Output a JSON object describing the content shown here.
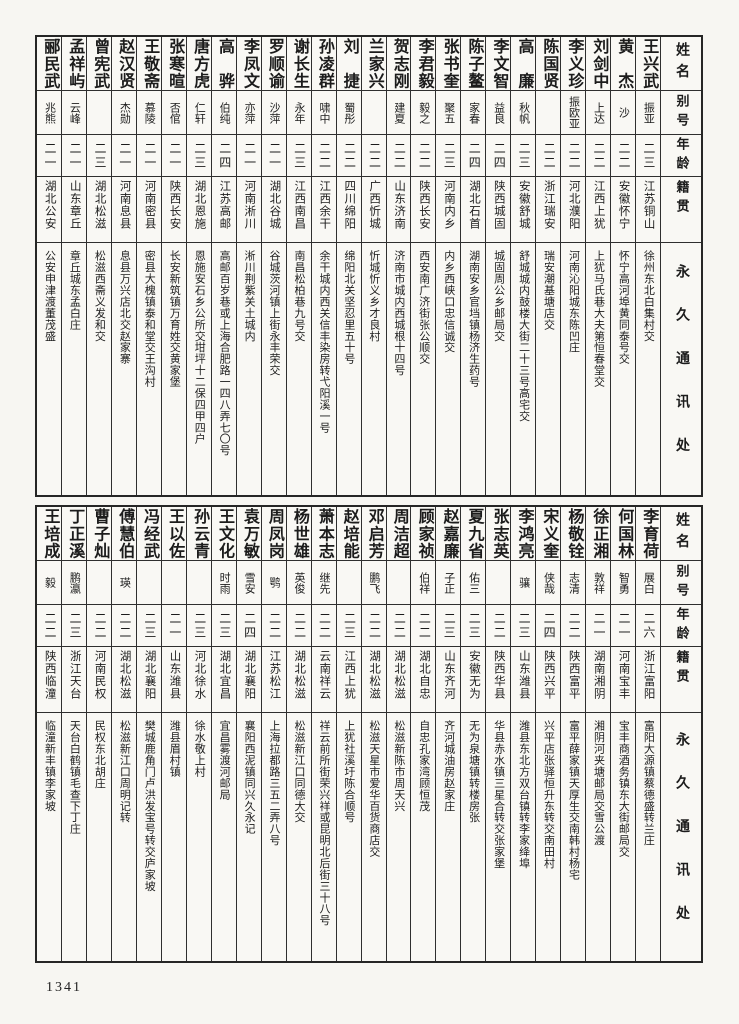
{
  "page": {
    "number": "1341"
  },
  "headers": {
    "name": "姓名",
    "alias": "别号",
    "age": "年龄",
    "native": "籍贯",
    "address": "永久通讯处"
  },
  "tables": [
    {
      "entries": [
        {
          "name": "王兴武",
          "alias": "振亚",
          "age": "二三",
          "native": "江苏铜山",
          "address": "徐州东北白集村交"
        },
        {
          "name": "黄　杰",
          "alias": "沙",
          "age": "二二",
          "native": "安徽怀宁",
          "address": "怀宁高河埠黄同泰号交"
        },
        {
          "name": "刘剑中",
          "alias": "上达",
          "age": "二二",
          "native": "江西上犹",
          "address": "上犹马氏巷大夫第恒春堂交"
        },
        {
          "name": "李义珍",
          "alias": "振欧亚",
          "age": "二二",
          "native": "河北濮阳",
          "address": "河南沁阳城东陈凹庄"
        },
        {
          "name": "陈国贤",
          "alias": "",
          "age": "二二",
          "native": "浙江瑞安",
          "address": "瑞安潮基塘店交"
        },
        {
          "name": "高　廉",
          "alias": "秋帆",
          "age": "二三",
          "native": "安徽舒城",
          "address": "舒城城内鼓楼大街二十三号高宅交"
        },
        {
          "name": "李文智",
          "alias": "益良",
          "age": "二四",
          "native": "陕西城固",
          "address": "城固周公乡邮局交"
        },
        {
          "name": "陈子鳌",
          "alias": "家春",
          "age": "二四",
          "native": "湖北石首",
          "address": "湖南安乡官垱镇杨济生药号"
        },
        {
          "name": "张书奎",
          "alias": "聚五",
          "age": "二三",
          "native": "河南内乡",
          "address": "内乡西峡口忠信诚交"
        },
        {
          "name": "李君毅",
          "alias": "毅之",
          "age": "二二",
          "native": "陕西长安",
          "address": "西安南广济街张公顺交"
        },
        {
          "name": "贺志刚",
          "alias": "建夏",
          "age": "二二",
          "native": "山东济南",
          "address": "济南市城内西城根十四号"
        },
        {
          "name": "兰家兴",
          "alias": "",
          "age": "二二",
          "native": "广西忻城",
          "address": "忻城忻义乡才良村"
        },
        {
          "name": "刘　捷",
          "alias": "蜀彤",
          "age": "二二",
          "native": "四川绵阳",
          "address": "绵阳北关坚忍里五十号"
        },
        {
          "name": "孙凌群",
          "alias": "啸中",
          "age": "二二",
          "native": "江西余干",
          "address": "余干城内西关信丰染房转弋阳溪一号"
        },
        {
          "name": "谢长生",
          "alias": "永年",
          "age": "二三",
          "native": "江西南昌",
          "address": "南昌松柏巷九号交"
        },
        {
          "name": "罗顺谕",
          "alias": "沙萍",
          "age": "二一",
          "native": "湖北谷城",
          "address": "谷城茨河镇上街永丰荣交"
        },
        {
          "name": "李凤文",
          "alias": "亦萍",
          "age": "二一",
          "native": "河南淅川",
          "address": "淅川荆紫关土城内"
        },
        {
          "name": "高　骅",
          "alias": "伯纯",
          "age": "二四",
          "native": "江苏高邮",
          "address": "高邮百岁巷或上海合肥路一四八弄七〇号"
        },
        {
          "name": "唐方虎",
          "alias": "仁轩",
          "age": "二三",
          "native": "湖北恩施",
          "address": "恩施安石乡公所交坩坪十二保四甲四户"
        },
        {
          "name": "张寒暄",
          "alias": "否倌",
          "age": "二一",
          "native": "陕西长安",
          "address": "长安新筑镇万育姓交黄家堡"
        },
        {
          "name": "王敬斋",
          "alias": "慕陵",
          "age": "二一",
          "native": "河南密县",
          "address": "密县大槐镇泰和堂交王沟村"
        },
        {
          "name": "赵汉贤",
          "alias": "杰勋",
          "age": "二一",
          "native": "河南息县",
          "address": "息县万兴店北交赵家寨"
        },
        {
          "name": "曾宪武",
          "alias": "",
          "age": "二三",
          "native": "湖北松滋",
          "address": "松滋西斋义发和交"
        },
        {
          "name": "孟祥屿",
          "alias": "云峰",
          "age": "二一",
          "native": "山东章丘",
          "address": "章丘城东孟白庄"
        },
        {
          "name": "郦民武",
          "alias": "兆熊",
          "age": "二一",
          "native": "湖北公安",
          "address": "公安申津渡董茂盛"
        }
      ]
    },
    {
      "entries": [
        {
          "name": "李育荷",
          "alias": "展白",
          "age": "二六",
          "native": "浙江富阳",
          "address": "富阳大源镇蔡德盛转兰庄"
        },
        {
          "name": "何国林",
          "alias": "智勇",
          "age": "二一",
          "native": "河南宝丰",
          "address": "宝丰商酒务镇东大街邮局交"
        },
        {
          "name": "徐正湘",
          "alias": "敦祥",
          "age": "二一",
          "native": "湖南湘阴",
          "address": "湘阴河夹塘邮局交雪公渡"
        },
        {
          "name": "杨敬铨",
          "alias": "志清",
          "age": "二二",
          "native": "陕西富平",
          "address": "富平薛家镇天厚生交南韩村杨宅"
        },
        {
          "name": "宋义奎",
          "alias": "侠哉",
          "age": "二四",
          "native": "陕西兴平",
          "address": "兴平店张驿恒升东转交南田村"
        },
        {
          "name": "李鸿亮",
          "alias": "骧",
          "age": "二三",
          "native": "山东潍县",
          "address": "潍县东北方双台镇转李家绛埠"
        },
        {
          "name": "张志英",
          "alias": "",
          "age": "二二",
          "native": "陕西华县",
          "address": "华县赤水镇三星合转交张家堡"
        },
        {
          "name": "夏九省",
          "alias": "佑三",
          "age": "二三",
          "native": "安徽无为",
          "address": "无为泉塘镇转楼房张"
        },
        {
          "name": "赵嘉廉",
          "alias": "子正",
          "age": "二三",
          "native": "山东齐河",
          "address": "齐河城油房赵家庄"
        },
        {
          "name": "顾家祯",
          "alias": "伯祥",
          "age": "二二",
          "native": "湖北自忠",
          "address": "自忠孔家湾顾恒茂"
        },
        {
          "name": "周洁超",
          "alias": "",
          "age": "二二",
          "native": "湖北松滋",
          "address": "松滋新陈市周天兴"
        },
        {
          "name": "邓启芳",
          "alias": "鹏飞",
          "age": "二二",
          "native": "湖北松滋",
          "address": "松滋天星市爱华百货商店交"
        },
        {
          "name": "赵培能",
          "alias": "",
          "age": "二三",
          "native": "江西上犹",
          "address": "上犹社溪圩陈合顺号"
        },
        {
          "name": "萧本志",
          "alias": "继先",
          "age": "二二",
          "native": "云南祥云",
          "address": "祥云前所街荣兴祥或昆明北后街三十八号"
        },
        {
          "name": "杨世雄",
          "alias": "英俊",
          "age": "二二",
          "native": "湖北松滋",
          "address": "松滋新江口同德大交"
        },
        {
          "name": "周凤岗",
          "alias": "鹗",
          "age": "二二",
          "native": "江苏松江",
          "address": "上海拉都路三五二弄八号"
        },
        {
          "name": "袁万敏",
          "alias": "雪安",
          "age": "二四",
          "native": "湖北襄阳",
          "address": "襄阳西泥镇同兴久永记"
        },
        {
          "name": "王文化",
          "alias": "时雨",
          "age": "二三",
          "native": "湖北宜昌",
          "address": "宜昌雾渡河邮局"
        },
        {
          "name": "孙云青",
          "alias": "",
          "age": "二三",
          "native": "河北徐水",
          "address": "徐水敬上村"
        },
        {
          "name": "王以佐",
          "alias": "",
          "age": "二一",
          "native": "山东潍县",
          "address": "潍县眉村镇"
        },
        {
          "name": "冯经武",
          "alias": "",
          "age": "二三",
          "native": "湖北襄阳",
          "address": "樊城鹿角门卢洪发宝号转交庐家坡"
        },
        {
          "name": "傅慧伯",
          "alias": "瑛",
          "age": "二二",
          "native": "湖北松滋",
          "address": "松滋新江口周明记转"
        },
        {
          "name": "曹子灿",
          "alias": "",
          "age": "二二",
          "native": "河南民权",
          "address": "民权东北胡庄"
        },
        {
          "name": "丁正溪",
          "alias": "鹏瀛",
          "age": "二三",
          "native": "浙江天台",
          "address": "天台白鹤镇毛查下丁庄"
        },
        {
          "name": "王培成",
          "alias": "毅",
          "age": "二二",
          "native": "陕西临潼",
          "address": "临潼新丰镇李家坡"
        }
      ]
    }
  ]
}
